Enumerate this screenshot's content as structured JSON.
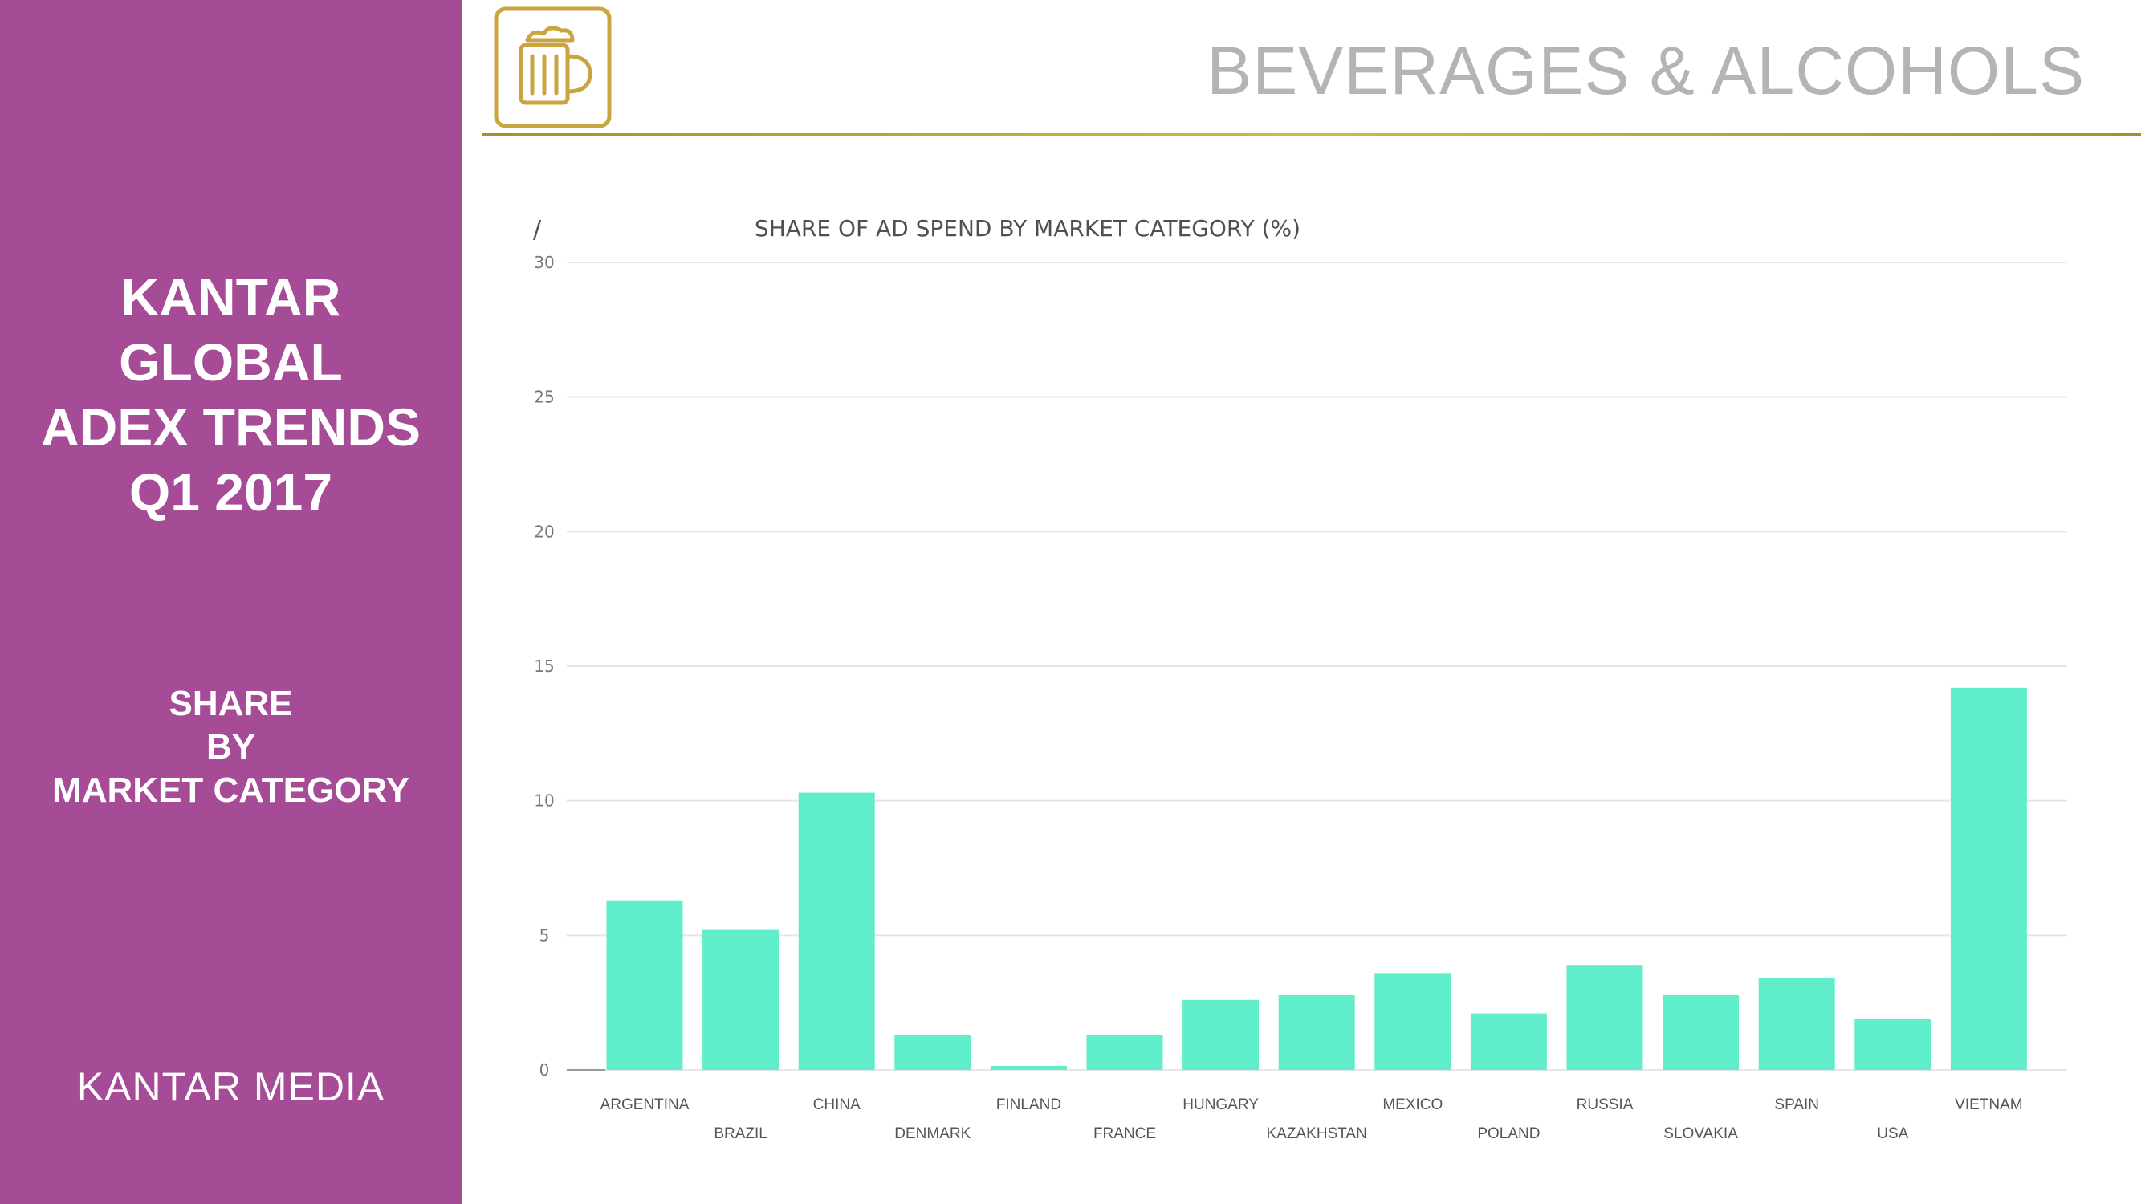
{
  "sidebar": {
    "title_lines": [
      "KANTAR",
      "GLOBAL",
      "ADEX TRENDS",
      "Q1 2017"
    ],
    "subtitle_lines": [
      "SHARE",
      "BY",
      "MARKET CATEGORY"
    ],
    "brand_logo": "KANTAR MEDIA",
    "background_color": "#a64c96"
  },
  "header": {
    "title": "BEVERAGES & ALCOHOLS",
    "icon": "beer-mug-icon",
    "accent_color": "#c9a440"
  },
  "chart_mark": "/",
  "chart_data": {
    "type": "bar",
    "title": "SHARE OF AD SPEND BY MARKET CATEGORY (%)",
    "xlabel": "",
    "ylabel": "",
    "categories": [
      "ARGENTINA",
      "BRAZIL",
      "CHINA",
      "DENMARK",
      "FINLAND",
      "FRANCE",
      "HUNGARY",
      "KAZAKHSTAN",
      "MEXICO",
      "POLAND",
      "RUSSIA",
      "SLOVAKIA",
      "SPAIN",
      "USA",
      "VIETNAM"
    ],
    "values": [
      6.3,
      5.2,
      10.3,
      1.3,
      0.15,
      1.3,
      2.6,
      2.8,
      3.6,
      2.1,
      3.9,
      2.8,
      3.4,
      1.9,
      14.2
    ],
    "ylim": [
      0,
      30
    ],
    "yticks": [
      0,
      5,
      10,
      15,
      20,
      25,
      30
    ],
    "grid": true,
    "legend": "none",
    "bar_color": "#60edc9"
  }
}
